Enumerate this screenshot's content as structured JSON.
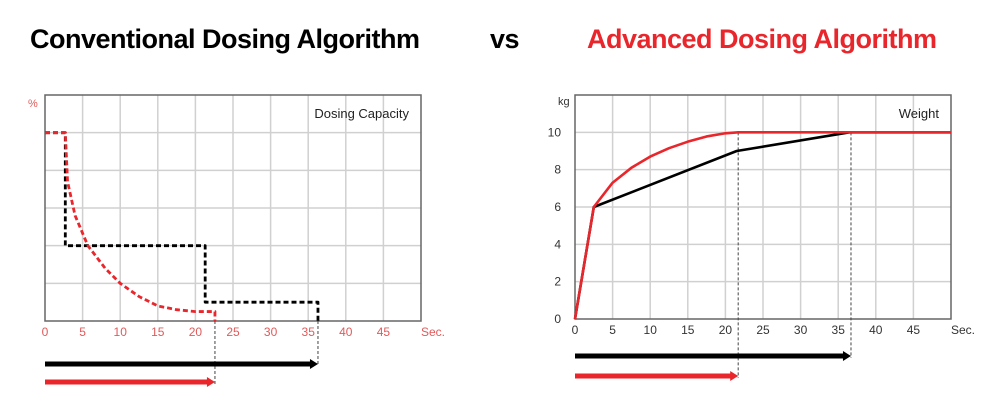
{
  "header": {
    "left_title": "Conventional Dosing Algorithm",
    "vs": "vs",
    "right_title": "Advanced Dosing Algorithm"
  },
  "colors": {
    "conventional": "#000000",
    "advanced": "#e8262b",
    "grid": "#d0d0d0",
    "axis_label_left": "#e05a5a"
  },
  "chart_data": [
    {
      "type": "line",
      "title": "Dosing Capacity",
      "ylabel": "%",
      "xlabel": "Sec.",
      "xlim": [
        0,
        50
      ],
      "ylim": [
        0,
        6
      ],
      "x_ticks": [
        "0",
        "5",
        "10",
        "15",
        "20",
        "25",
        "30",
        "35",
        "40",
        "45"
      ],
      "y_ticks": [],
      "grid": true,
      "series": [
        {
          "color": "#000000",
          "style": "dashed",
          "points": [
            [
              0,
              5
            ],
            [
              2.7,
              5
            ],
            [
              2.7,
              2
            ],
            [
              21.3,
              2
            ],
            [
              21.3,
              0.5
            ],
            [
              36.3,
              0.5
            ],
            [
              36.3,
              0
            ]
          ]
        },
        {
          "color": "#e8262b",
          "style": "dashed",
          "points": [
            [
              0,
              5
            ],
            [
              2.7,
              5
            ],
            [
              3,
              3.7
            ],
            [
              4,
              2.8
            ],
            [
              5.7,
              2
            ],
            [
              8,
              1.4
            ],
            [
              10,
              1
            ],
            [
              12.5,
              0.65
            ],
            [
              15,
              0.4
            ],
            [
              17.5,
              0.3
            ],
            [
              20,
              0.25
            ],
            [
              22.6,
              0.25
            ],
            [
              22.6,
              0
            ]
          ]
        }
      ],
      "completion_arrows": [
        {
          "color": "#000000",
          "end_x": 36.3
        },
        {
          "color": "#e8262b",
          "end_x": 22.6
        }
      ]
    },
    {
      "type": "line",
      "title": "Weight",
      "ylabel": "kg",
      "xlabel": "Sec.",
      "xlim": [
        0,
        50
      ],
      "ylim": [
        0,
        12
      ],
      "x_ticks": [
        "0",
        "5",
        "10",
        "15",
        "20",
        "25",
        "30",
        "35",
        "40",
        "45"
      ],
      "y_ticks": [
        "0",
        "2",
        "4",
        "6",
        "8",
        "10"
      ],
      "grid": true,
      "series": [
        {
          "color": "#000000",
          "style": "solid",
          "points": [
            [
              0,
              0
            ],
            [
              2.5,
              6
            ],
            [
              21.5,
              9
            ],
            [
              36.5,
              10
            ],
            [
              50,
              10
            ]
          ]
        },
        {
          "color": "#e8262b",
          "style": "solid",
          "points": [
            [
              0,
              0
            ],
            [
              2.5,
              6
            ],
            [
              5,
              7.3
            ],
            [
              7.5,
              8.1
            ],
            [
              10,
              8.7
            ],
            [
              12.5,
              9.15
            ],
            [
              15,
              9.5
            ],
            [
              17.5,
              9.78
            ],
            [
              20,
              9.95
            ],
            [
              21.7,
              10
            ],
            [
              50,
              10
            ]
          ]
        }
      ],
      "completion_arrows": [
        {
          "color": "#000000",
          "end_x": 36.7
        },
        {
          "color": "#e8262b",
          "end_x": 21.7
        }
      ]
    }
  ]
}
